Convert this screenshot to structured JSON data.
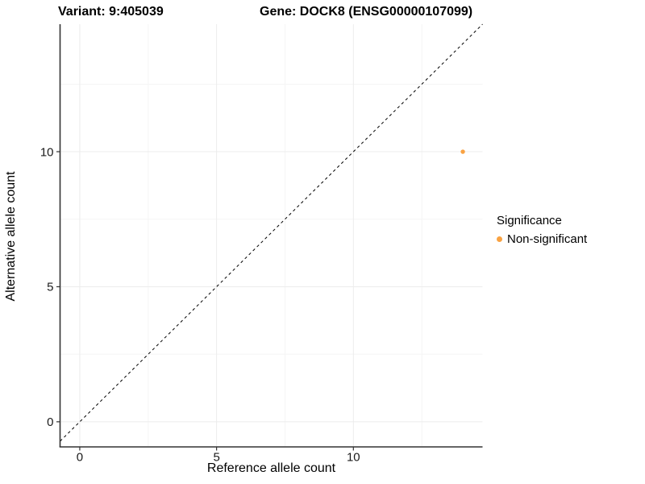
{
  "header": {
    "variant_title": "Variant: 9:405039",
    "gene_title": "Gene: DOCK8 (ENSG00000107099)"
  },
  "axes": {
    "x_label": "Reference allele count",
    "y_label": "Alternative allele count"
  },
  "legend": {
    "title": "Significance",
    "items": [
      {
        "label": "Non-significant",
        "color": "#F9A242"
      }
    ]
  },
  "colors": {
    "point_orange": "#F9A242",
    "axis_line": "#333333",
    "tick_text": "#1a1a1a",
    "grid_major": "#ECECEC",
    "grid_minor": "#F5F5F5",
    "dashed_line": "#000000",
    "background": "#FFFFFF"
  },
  "chart_data": {
    "type": "scatter",
    "title": "Variant: 9:405039 | Gene: DOCK8 (ENSG00000107099)",
    "xlabel": "Reference allele count",
    "ylabel": "Alternative allele count",
    "xlim": [
      -0.72,
      14.72
    ],
    "ylim": [
      -0.93,
      14.72
    ],
    "x_ticks": [
      0,
      5,
      10
    ],
    "y_ticks": [
      0,
      5,
      10
    ],
    "x_minor_ticks": [
      2.5,
      7.5,
      12.5
    ],
    "y_minor_ticks": [
      2.5,
      7.5,
      12.5
    ],
    "grid": "on",
    "legend_position": "right",
    "legend_title": "Significance",
    "series": [
      {
        "name": "Non-significant",
        "color": "#F9A242",
        "points": [
          {
            "x": 14,
            "y": 10
          }
        ]
      }
    ],
    "reference_line": {
      "type": "identity",
      "style": "dashed",
      "color": "#000000"
    }
  }
}
